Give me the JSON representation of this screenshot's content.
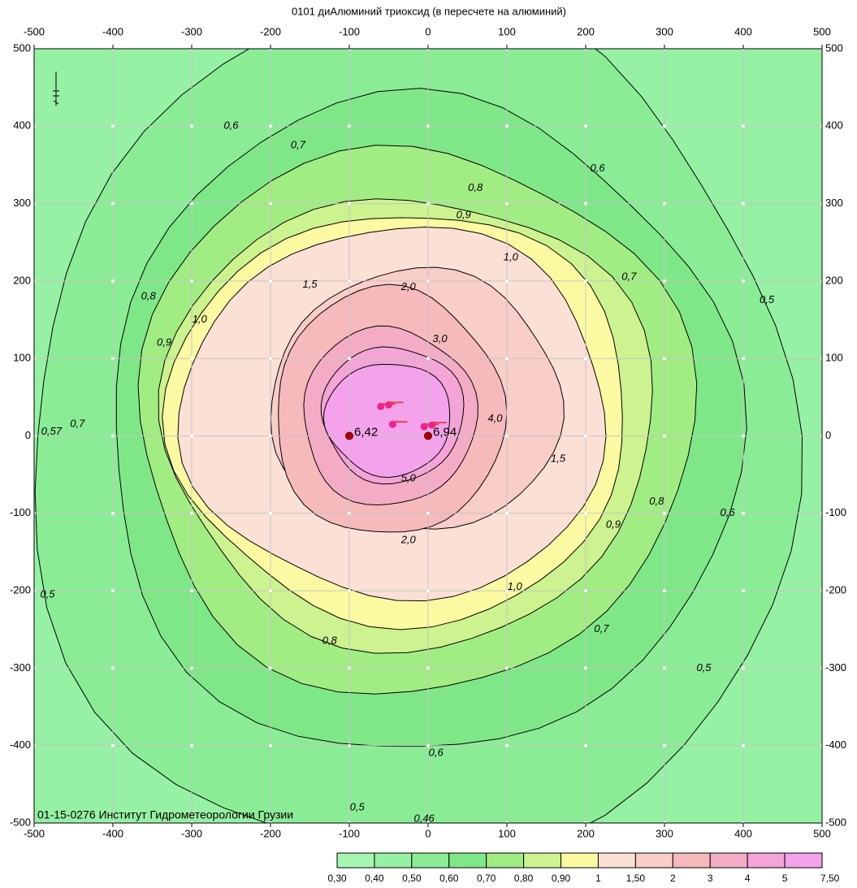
{
  "title": "0101 диАлюминий триоксид (в пересчете на алюминий)",
  "footer": "01-15-0276 Институт Гидрометеорологии Грузии",
  "map": {
    "xlim": [
      -500,
      500
    ],
    "ylim": [
      -500,
      500
    ],
    "xticks": [
      -500,
      -400,
      -300,
      -200,
      -100,
      0,
      100,
      200,
      300,
      400,
      500
    ],
    "yticks": [
      -500,
      -400,
      -300,
      -200,
      -100,
      0,
      100,
      200,
      300,
      400,
      500
    ],
    "grid": true,
    "contour_levels": [
      0.5,
      0.6,
      0.7,
      0.8,
      0.9,
      1,
      1.5,
      2,
      3,
      4,
      5
    ],
    "contour_labels": [
      {
        "value": 0.6,
        "label": "0,6",
        "x": -250,
        "y": 400
      },
      {
        "value": 0.7,
        "label": "0,7",
        "x": -165,
        "y": 375
      },
      {
        "value": 0.8,
        "label": "0,8",
        "x": 60,
        "y": 320
      },
      {
        "value": 0.9,
        "label": "0,9",
        "x": 45,
        "y": 285
      },
      {
        "value": 1,
        "label": "1,0",
        "x": 105,
        "y": 230
      },
      {
        "value": 1.5,
        "label": "1,5",
        "x": -150,
        "y": 195
      },
      {
        "value": 2,
        "label": "2,0",
        "x": -25,
        "y": 192
      },
      {
        "value": 0.7,
        "label": "0,7",
        "x": 255,
        "y": 205
      },
      {
        "value": 0.5,
        "label": "0,5",
        "x": 430,
        "y": 175
      },
      {
        "value": 0.6,
        "label": "0,6",
        "x": 215,
        "y": 345
      },
      {
        "value": 0.8,
        "label": "0,8",
        "x": -355,
        "y": 180
      },
      {
        "value": 1,
        "label": "1,0",
        "x": -290,
        "y": 150
      },
      {
        "value": 0.9,
        "label": "0,9",
        "x": -335,
        "y": 120
      },
      {
        "value": 3,
        "label": "3,0",
        "x": 15,
        "y": 125
      },
      {
        "value": 4,
        "label": "4,0",
        "x": 85,
        "y": 22
      },
      {
        "value": 5,
        "label": "5,0",
        "x": -25,
        "y": -55
      },
      {
        "value": 1.5,
        "label": "1,5",
        "x": 165,
        "y": -30
      },
      {
        "value": 0.8,
        "label": "0,8",
        "x": 290,
        "y": -85
      },
      {
        "value": 0.9,
        "label": "0,9",
        "x": 235,
        "y": -115
      },
      {
        "value": 0.6,
        "label": "0,6",
        "x": 380,
        "y": -100
      },
      {
        "value": 2,
        "label": "2,0",
        "x": -25,
        "y": -135
      },
      {
        "value": 1,
        "label": "1,0",
        "x": 110,
        "y": -195
      },
      {
        "value": 0.7,
        "label": "0,7",
        "x": 220,
        "y": -250
      },
      {
        "value": 0.5,
        "label": "0,5",
        "x": 350,
        "y": -300
      },
      {
        "value": 0.8,
        "label": "0,8",
        "x": -125,
        "y": -265
      },
      {
        "value": 0.6,
        "label": "0,6",
        "x": 10,
        "y": -410
      },
      {
        "value": 0.5,
        "label": "0,5",
        "x": -90,
        "y": -480
      },
      {
        "value": 0.46,
        "label": "0,46",
        "x": -5,
        "y": -495
      },
      {
        "value": 0.5,
        "label": "0,5",
        "x": -483,
        "y": -205
      },
      {
        "value": 0.57,
        "label": "0,57",
        "x": -478,
        "y": 5
      },
      {
        "value": 0.7,
        "label": "0,7",
        "x": -445,
        "y": 15
      }
    ],
    "points": [
      {
        "x": -100,
        "y": 0,
        "value": 6.42,
        "label": "6,42"
      },
      {
        "x": 0,
        "y": 0,
        "value": 6.94,
        "label": "6,94"
      }
    ]
  },
  "legend": {
    "values": [
      {
        "value": 0.3,
        "label": "0,30"
      },
      {
        "value": 0.4,
        "label": "0,40"
      },
      {
        "value": 0.5,
        "label": "0,50"
      },
      {
        "value": 0.6,
        "label": "0,60"
      },
      {
        "value": 0.7,
        "label": "0,70"
      },
      {
        "value": 0.8,
        "label": "0,80"
      },
      {
        "value": 0.9,
        "label": "0,90"
      },
      1,
      {
        "value": 1.5,
        "label": "1,50"
      },
      2,
      3,
      4,
      5,
      {
        "value": 7.5,
        "label": "7,50"
      }
    ],
    "colors": [
      "#a6f6b2",
      "#97f1a4",
      "#8aed96",
      "#80e788",
      "#a2ec84",
      "#cdf290",
      "#fbfaa2",
      "#fbe0d6",
      "#f9cdc8",
      "#f6b9bc",
      "#f4acc6",
      "#f4a4d6",
      "#f5a2ec"
    ]
  }
}
